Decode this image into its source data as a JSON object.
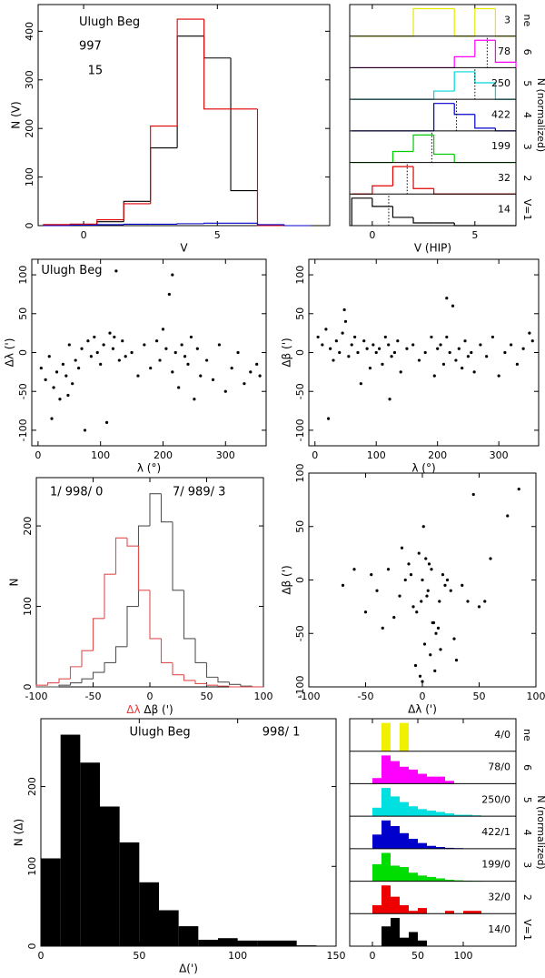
{
  "chart_data": [
    {
      "type": "histogram",
      "xlim": [
        -1.7,
        9.2
      ],
      "ylim": [
        0,
        455
      ],
      "xticks": [
        0,
        5
      ],
      "yticks": [
        0,
        100,
        200,
        300,
        400
      ],
      "xlabel": "V",
      "ylabel": "N (V)",
      "bins": [
        -1.5,
        -0.5,
        0.5,
        1.5,
        2.5,
        3.5,
        4.5,
        5.5,
        6.5,
        7.5,
        8.5
      ],
      "series": [
        {
          "color": "#000000",
          "values": [
            2,
            3,
            8,
            50,
            160,
            390,
            345,
            72,
            0,
            0
          ]
        },
        {
          "color": "#e00000",
          "values": [
            2,
            3,
            12,
            45,
            205,
            425,
            240,
            240,
            0,
            0
          ]
        },
        {
          "color": "#0000cc",
          "values": [
            0,
            1,
            2,
            3,
            3,
            4,
            5,
            5,
            2,
            0
          ]
        }
      ],
      "annotations": [
        {
          "text": "Ulugh Beg",
          "color": "#000000"
        },
        {
          "text": "997",
          "color": "#000000"
        },
        {
          "text": "15",
          "color": "#0000cc"
        }
      ]
    },
    {
      "type": "step_strips",
      "xlim": [
        -1.1,
        7.0
      ],
      "ylim": [
        0,
        1.15
      ],
      "xticks": [
        0,
        5
      ],
      "xlabel": "V (HIP)",
      "side_label": "N (normalized)",
      "bins": [
        -1,
        0,
        1,
        2,
        3,
        4,
        5,
        6,
        7
      ],
      "row_labels": [
        "ne",
        "6",
        "5",
        "4",
        "3",
        "2",
        "V=1"
      ],
      "series": [
        {
          "name": "3",
          "color": "#e8e800",
          "values": [
            0,
            0,
            0,
            1,
            1,
            0,
            1,
            0
          ]
        },
        {
          "name": "78",
          "color": "#ff00ff",
          "values": [
            0,
            0,
            0,
            0,
            0,
            0.4,
            1,
            0.2
          ],
          "mean": 5.6
        },
        {
          "name": "250",
          "color": "#00d8d8",
          "values": [
            0,
            0,
            0,
            0,
            0.3,
            1,
            0.6,
            0
          ],
          "mean": 5.0
        },
        {
          "name": "422",
          "color": "#0000cc",
          "values": [
            0,
            0,
            0,
            0,
            1,
            0.6,
            0.1,
            0
          ],
          "mean": 4.1
        },
        {
          "name": "199",
          "color": "#00cc00",
          "values": [
            0,
            0,
            0.4,
            1,
            0.3,
            0,
            0,
            0
          ],
          "mean": 2.9
        },
        {
          "name": "32",
          "color": "#e00000",
          "values": [
            0,
            0.3,
            1,
            0.2,
            0,
            0,
            0,
            0
          ],
          "mean": 1.7
        },
        {
          "name": "14",
          "color": "#000000",
          "values": [
            1,
            0.7,
            0.3,
            0.1,
            0.1,
            0,
            0,
            0
          ],
          "mean": 0.8
        }
      ]
    },
    {
      "type": "scatter",
      "xlim": [
        -10,
        365
      ],
      "ylim": [
        -120,
        120
      ],
      "xticks": [
        0,
        100,
        200,
        300
      ],
      "yticks": [
        -100,
        -50,
        0,
        50,
        100
      ],
      "xlabel": "λ (°)",
      "ylabel": "Δλ (')",
      "annotations": [
        {
          "text": "Ulugh Beg",
          "color": "#000000"
        }
      ],
      "x": [
        5,
        12,
        18,
        25,
        30,
        35,
        40,
        45,
        50,
        55,
        60,
        65,
        70,
        75,
        80,
        85,
        90,
        95,
        100,
        105,
        110,
        115,
        120,
        125,
        130,
        135,
        140,
        150,
        160,
        170,
        180,
        190,
        195,
        200,
        205,
        210,
        215,
        220,
        225,
        230,
        235,
        240,
        245,
        250,
        255,
        260,
        270,
        280,
        290,
        300,
        310,
        320,
        330,
        340,
        350,
        355,
        22,
        48,
        122,
        215
      ],
      "values": [
        -20,
        -35,
        -5,
        -45,
        -25,
        -60,
        -15,
        -30,
        10,
        -40,
        -10,
        -20,
        5,
        -100,
        15,
        -5,
        20,
        0,
        -15,
        10,
        -90,
        25,
        5,
        105,
        -10,
        15,
        -5,
        0,
        -30,
        10,
        -20,
        15,
        -10,
        30,
        5,
        75,
        -25,
        0,
        -45,
        10,
        -5,
        -15,
        20,
        -60,
        5,
        -30,
        -10,
        -35,
        10,
        -50,
        -20,
        0,
        -40,
        -25,
        -15,
        -30,
        -85,
        -55,
        20,
        100
      ]
    },
    {
      "type": "scatter",
      "xlim": [
        -10,
        365
      ],
      "ylim": [
        -120,
        120
      ],
      "xticks": [
        0,
        100,
        200,
        300
      ],
      "yticks": [
        -100,
        -50,
        0,
        50,
        100
      ],
      "xlabel": "λ (°)",
      "ylabel": "Δβ (')",
      "x": [
        5,
        12,
        18,
        25,
        30,
        35,
        40,
        45,
        50,
        55,
        60,
        65,
        70,
        75,
        80,
        85,
        90,
        95,
        100,
        105,
        110,
        115,
        120,
        125,
        130,
        135,
        140,
        150,
        160,
        170,
        180,
        190,
        195,
        200,
        205,
        210,
        215,
        220,
        225,
        230,
        235,
        240,
        245,
        250,
        255,
        260,
        270,
        280,
        290,
        300,
        310,
        320,
        330,
        340,
        350,
        355,
        22,
        48,
        122,
        215
      ],
      "values": [
        20,
        10,
        30,
        5,
        -10,
        15,
        0,
        25,
        40,
        -5,
        10,
        20,
        0,
        -40,
        15,
        5,
        -20,
        10,
        0,
        5,
        -15,
        20,
        10,
        -5,
        0,
        15,
        -25,
        5,
        10,
        -10,
        0,
        20,
        -30,
        5,
        10,
        -15,
        20,
        0,
        60,
        -10,
        5,
        -20,
        15,
        -5,
        0,
        -25,
        10,
        -5,
        20,
        -30,
        0,
        10,
        -15,
        5,
        25,
        15,
        -85,
        55,
        -60,
        70
      ]
    },
    {
      "type": "histogram",
      "xlim": [
        -100,
        100
      ],
      "ylim": [
        0,
        260
      ],
      "xticks": [
        -100,
        -50,
        0,
        50,
        100
      ],
      "yticks": [
        0,
        100,
        200
      ],
      "ylabel": "N",
      "xlabel_parts": [
        {
          "text": "Δλ",
          "color": "#e04040"
        },
        {
          "text": " Δβ (')",
          "color": "#000000"
        }
      ],
      "bins": [
        -100,
        -90,
        -80,
        -70,
        -60,
        -50,
        -40,
        -30,
        -20,
        -10,
        0,
        10,
        20,
        30,
        40,
        50,
        60,
        70,
        80,
        90,
        100
      ],
      "series": [
        {
          "color": "#555555",
          "values": [
            0,
            0,
            2,
            5,
            10,
            18,
            30,
            50,
            100,
            200,
            240,
            205,
            120,
            60,
            30,
            12,
            6,
            3,
            1,
            0
          ]
        },
        {
          "color": "#e05050",
          "values": [
            2,
            5,
            10,
            25,
            45,
            85,
            140,
            185,
            175,
            120,
            60,
            30,
            15,
            8,
            4,
            2,
            1,
            0,
            0,
            0
          ]
        }
      ],
      "annotations": [
        {
          "text": "1/ 998/ 0",
          "color": "#555555"
        },
        {
          "text": "7/ 989/ 3",
          "color": "#e04040"
        }
      ]
    },
    {
      "type": "scatter",
      "xlim": [
        -100,
        100
      ],
      "ylim": [
        -100,
        100
      ],
      "xticks": [
        -100,
        -50,
        0,
        50,
        100
      ],
      "yticks": [
        -100,
        -50,
        0,
        50,
        100
      ],
      "xlabel": "Δλ (')",
      "ylabel": "Δβ (')",
      "x": [
        0,
        5,
        -10,
        15,
        8,
        -5,
        20,
        3,
        -20,
        10,
        -15,
        25,
        6,
        -8,
        12,
        -30,
        35,
        2,
        -3,
        18,
        -25,
        40,
        7,
        -12,
        14,
        -40,
        50,
        1,
        -6,
        22,
        -50,
        60,
        4,
        -2,
        28,
        -60,
        75,
        9,
        -18,
        16,
        55,
        -35,
        30,
        -45,
        11,
        -70,
        85,
        -1,
        45,
        0
      ],
      "values": [
        0,
        -10,
        5,
        -20,
        10,
        -30,
        -5,
        20,
        -15,
        -40,
        0,
        -10,
        15,
        -25,
        -50,
        10,
        -5,
        -60,
        25,
        5,
        -35,
        -20,
        -70,
        15,
        -45,
        -10,
        -25,
        50,
        -80,
        0,
        -30,
        20,
        -15,
        -90,
        -55,
        10,
        60,
        -40,
        30,
        -65,
        -20,
        -45,
        -75,
        5,
        -85,
        -5,
        85,
        -20,
        80,
        -95
      ]
    },
    {
      "type": "histogram",
      "filled": true,
      "xlim": [
        0,
        150
      ],
      "ylim": [
        0,
        285
      ],
      "xticks": [
        0,
        50,
        100,
        150
      ],
      "yticks": [
        0,
        100,
        200
      ],
      "xlabel": "Δ(')",
      "ylabel": "N (Δ)",
      "bins": [
        0,
        10,
        20,
        30,
        40,
        50,
        60,
        70,
        80,
        90,
        100,
        110,
        120,
        130,
        140
      ],
      "series": [
        {
          "color": "#000000",
          "values": [
            110,
            265,
            230,
            175,
            130,
            80,
            45,
            25,
            8,
            10,
            7,
            7,
            7,
            1
          ]
        }
      ],
      "annotations": [
        {
          "text": "Ulugh Beg",
          "color": "#555555"
        },
        {
          "text": "998/  1",
          "color": "#555555"
        }
      ]
    },
    {
      "type": "bar_strips",
      "xlim": [
        -25,
        158
      ],
      "ylim": [
        0,
        1.15
      ],
      "xticks": [
        0,
        50,
        100
      ],
      "side_label": "N (normalized)",
      "bins": [
        0,
        10,
        20,
        30,
        40,
        50,
        60,
        70,
        80,
        90,
        100,
        110,
        120,
        130,
        140
      ],
      "row_labels": [
        "ne",
        "6",
        "5",
        "4",
        "3",
        "2",
        "V=1"
      ],
      "series": [
        {
          "name": "4/0",
          "color": "#f0f000",
          "values": [
            0,
            1,
            0,
            1,
            0,
            0,
            0,
            0,
            0,
            0,
            0,
            0,
            0,
            0
          ]
        },
        {
          "name": "78/0",
          "color": "#ff00ff",
          "values": [
            0.2,
            1,
            0.8,
            0.6,
            0.5,
            0.35,
            0.25,
            0.25,
            0.1,
            0,
            0,
            0,
            0,
            0
          ]
        },
        {
          "name": "250/0",
          "color": "#00e0e0",
          "values": [
            0.3,
            1,
            0.7,
            0.5,
            0.35,
            0.25,
            0.2,
            0.15,
            0.1,
            0.05,
            0.05,
            0.03,
            0,
            0
          ]
        },
        {
          "name": "422/1",
          "color": "#0000cc",
          "values": [
            0.5,
            1,
            0.8,
            0.55,
            0.35,
            0.2,
            0.1,
            0.06,
            0.03,
            0.02,
            0.01,
            0,
            0,
            0
          ]
        },
        {
          "name": "199/0",
          "color": "#00dd00",
          "values": [
            0.6,
            1,
            0.55,
            0.5,
            0.3,
            0.2,
            0.15,
            0.1,
            0.05,
            0.03,
            0.02,
            0.01,
            0,
            0
          ]
        },
        {
          "name": "32/0",
          "color": "#ee0000",
          "values": [
            0.3,
            1,
            0.6,
            0.3,
            0.1,
            0.2,
            0,
            0,
            0.1,
            0,
            0.1,
            0.1,
            0,
            0
          ]
        },
        {
          "name": "14/0",
          "color": "#000000",
          "values": [
            0,
            0.7,
            1,
            0.3,
            0.5,
            0.2,
            0,
            0,
            0,
            0,
            0,
            0,
            0,
            0
          ]
        }
      ]
    }
  ]
}
